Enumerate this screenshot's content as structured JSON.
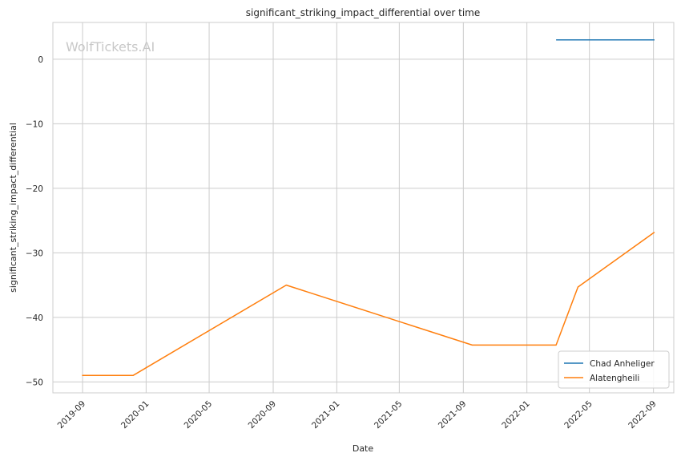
{
  "chart_data": {
    "type": "line",
    "title": "significant_striking_impact_differential over time",
    "xlabel": "Date",
    "ylabel": "significant_striking_impact_differential",
    "watermark": "WolfTickets.AI",
    "x_tick_labels": [
      "2019-09",
      "2020-01",
      "2020-05",
      "2020-09",
      "2021-01",
      "2021-05",
      "2021-09",
      "2022-01",
      "2022-05",
      "2022-09"
    ],
    "x_ticks": [
      "2019-09-01",
      "2020-01-01",
      "2020-05-01",
      "2020-09-01",
      "2021-01-01",
      "2021-05-01",
      "2021-09-01",
      "2022-01-01",
      "2022-05-01",
      "2022-09-01"
    ],
    "y_ticks": [
      0,
      -10,
      -20,
      -30,
      -40,
      -50
    ],
    "y_tick_labels": [
      "0",
      "−10",
      "−20",
      "−30",
      "−40",
      "−50"
    ],
    "xlim": [
      "2019-07-06",
      "2022-10-10"
    ],
    "ylim": [
      -51.7,
      5.7
    ],
    "grid": true,
    "legend_position": "lower-right",
    "series": [
      {
        "name": "Chad Anheliger",
        "color": "#1f77b4",
        "points": [
          {
            "x": "2022-02-26",
            "y": 3.0
          },
          {
            "x": "2022-09-03",
            "y": 3.0
          }
        ]
      },
      {
        "name": "Alatengheili",
        "color": "#ff7f0e",
        "points": [
          {
            "x": "2019-08-31",
            "y": -49.0
          },
          {
            "x": "2019-12-07",
            "y": -49.0
          },
          {
            "x": "2020-09-26",
            "y": -35.0
          },
          {
            "x": "2021-09-18",
            "y": -44.3
          },
          {
            "x": "2022-02-26",
            "y": -44.3
          },
          {
            "x": "2022-04-09",
            "y": -35.3
          },
          {
            "x": "2022-09-03",
            "y": -26.8
          }
        ]
      }
    ]
  }
}
